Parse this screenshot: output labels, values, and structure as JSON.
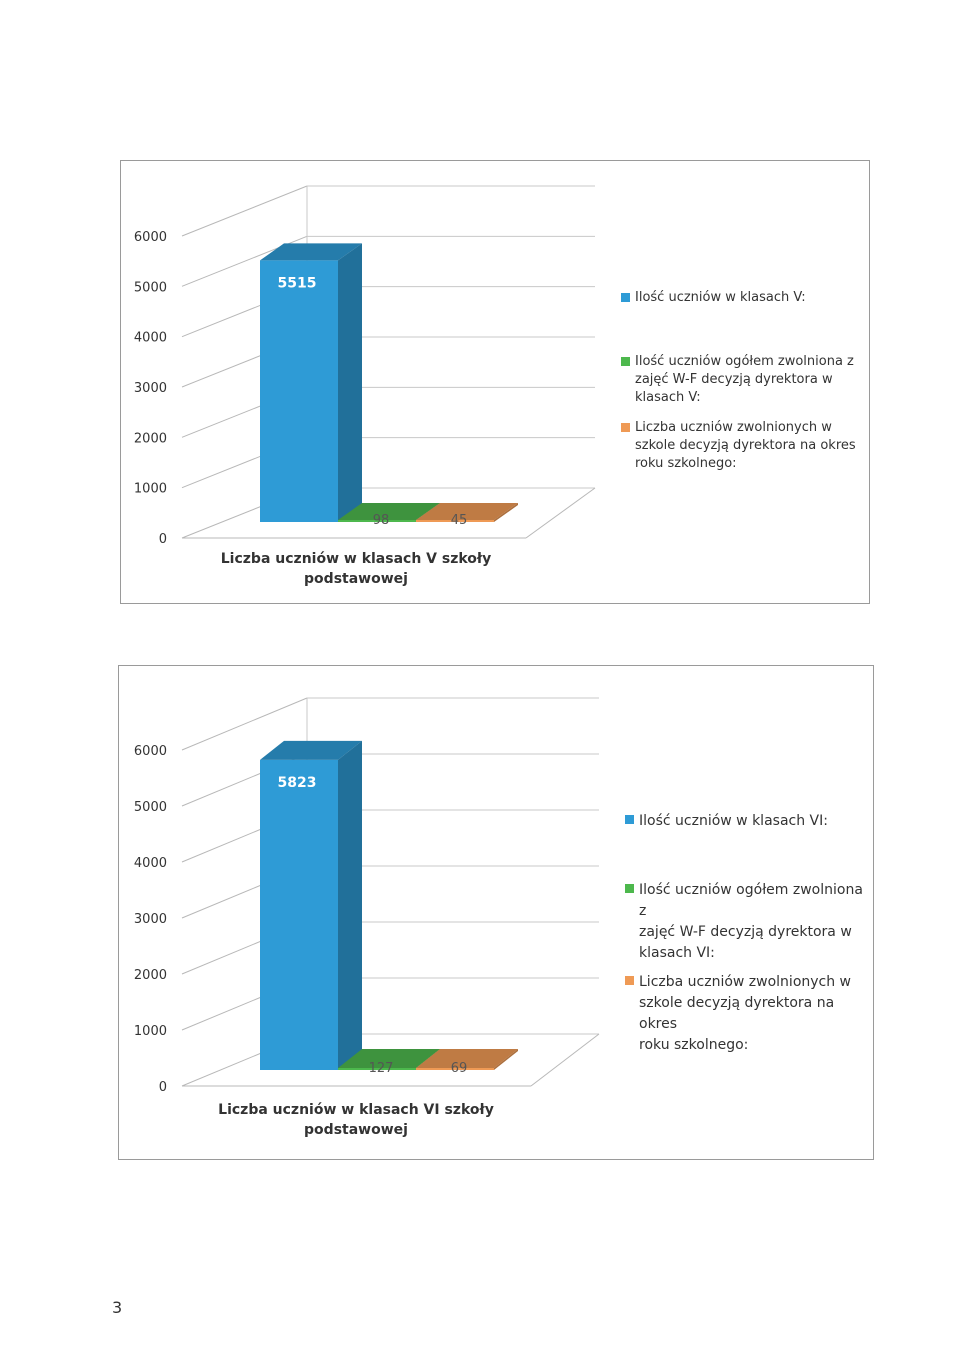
{
  "colors": {
    "blue": "#2e9bd6",
    "green": "#4db84d",
    "orange": "#ef9a55"
  },
  "page_number": "3",
  "chart_data": [
    {
      "type": "bar",
      "categories": [
        "Liczba uczniów w klasach V szkoły podstawowej"
      ],
      "category_lines": [
        "Liczba uczniów w klasach V szkoły",
        "podstawowej"
      ],
      "series": [
        {
          "name": "Ilość uczniów w klasach V:",
          "values": [
            5515
          ],
          "color": "#2e9bd6",
          "label": "5515"
        },
        {
          "name": "Ilość uczniów ogółem zwolniona z zajęć W-F decyzją dyrektora w klasach V:",
          "values": [
            98
          ],
          "color": "#4db84d",
          "label": "98"
        },
        {
          "name": "Liczba uczniów zwolnionych w szkole decyzją dyrektora na okres roku szkolnego:",
          "values": [
            45
          ],
          "color": "#ef9a55",
          "label": "45"
        }
      ],
      "y_ticks": [
        "0",
        "1000",
        "2000",
        "3000",
        "4000",
        "5000",
        "6000"
      ],
      "ylim": [
        0,
        6000
      ],
      "grid": true,
      "legend_position": "right",
      "projection": "3d"
    },
    {
      "type": "bar",
      "categories": [
        "Liczba uczniów w klasach VI szkoły podstawowej"
      ],
      "category_lines": [
        "Liczba uczniów w klasach VI szkoły",
        "podstawowej"
      ],
      "series": [
        {
          "name": "Ilość uczniów w klasach VI:",
          "values": [
            5823
          ],
          "color": "#2e9bd6",
          "label": "5823"
        },
        {
          "name": "Ilość uczniów ogółem zwolniona z zajęć W-F decyzją dyrektora w klasach VI:",
          "values": [
            127
          ],
          "color": "#4db84d",
          "label": "127"
        },
        {
          "name": "Liczba uczniów zwolnionych w szkole decyzją dyrektora na okres roku szkolnego:",
          "values": [
            69
          ],
          "color": "#ef9a55",
          "label": "69"
        }
      ],
      "y_ticks": [
        "0",
        "1000",
        "2000",
        "3000",
        "4000",
        "5000",
        "6000"
      ],
      "ylim": [
        0,
        6000
      ],
      "grid": true,
      "legend_position": "right",
      "projection": "3d"
    }
  ],
  "legend_lines": [
    [
      [
        "Ilość uczniów w klasach V:"
      ],
      [
        "Ilość uczniów ogółem zwolniona z",
        "zajęć W-F decyzją dyrektora w",
        "klasach V:"
      ],
      [
        "Liczba uczniów zwolnionych w",
        "szkole decyzją dyrektora na okres",
        "roku szkolnego:"
      ]
    ],
    [
      [
        "Ilość uczniów w klasach VI:"
      ],
      [
        "Ilość uczniów ogółem zwolniona z",
        "zajęć W-F decyzją dyrektora w",
        "klasach VI:"
      ],
      [
        "Liczba uczniów zwolnionych w",
        "szkole decyzją dyrektora na okres",
        "roku szkolnego:"
      ]
    ]
  ]
}
